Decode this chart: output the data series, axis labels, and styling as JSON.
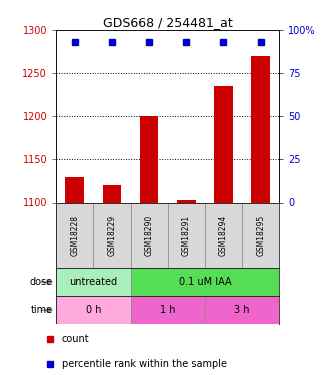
{
  "title": "GDS668 / 254481_at",
  "samples": [
    "GSM18228",
    "GSM18229",
    "GSM18290",
    "GSM18291",
    "GSM18294",
    "GSM18295"
  ],
  "bar_values": [
    1130,
    1120,
    1200,
    1103,
    1235,
    1270
  ],
  "percentile_values": [
    93,
    93,
    93,
    93,
    93,
    93
  ],
  "bar_color": "#cc0000",
  "dot_color": "#0000cc",
  "ylim_left": [
    1100,
    1300
  ],
  "ylim_right": [
    0,
    100
  ],
  "yticks_left": [
    1100,
    1150,
    1200,
    1250,
    1300
  ],
  "yticks_right": [
    0,
    25,
    50,
    75,
    100
  ],
  "ytick_labels_right": [
    "0",
    "25",
    "50",
    "75",
    "100%"
  ],
  "dose_labels": [
    {
      "text": "untreated",
      "start": 0,
      "end": 2,
      "color": "#99ee99"
    },
    {
      "text": "0.1 uM IAA",
      "start": 2,
      "end": 6,
      "color": "#55dd55"
    }
  ],
  "time_labels": [
    {
      "text": "0 h",
      "start": 0,
      "end": 2
    },
    {
      "text": "1 h",
      "start": 2,
      "end": 4
    },
    {
      "text": "3 h",
      "start": 4,
      "end": 6
    }
  ],
  "time_color_light": "#ffaadd",
  "time_color_dark": "#ee66cc",
  "dose_color_untreated": "#aaeebb",
  "dose_color_treated": "#55dd55",
  "legend_count_color": "#cc0000",
  "legend_dot_color": "#0000cc",
  "grid_yticks": [
    1150,
    1200,
    1250
  ]
}
